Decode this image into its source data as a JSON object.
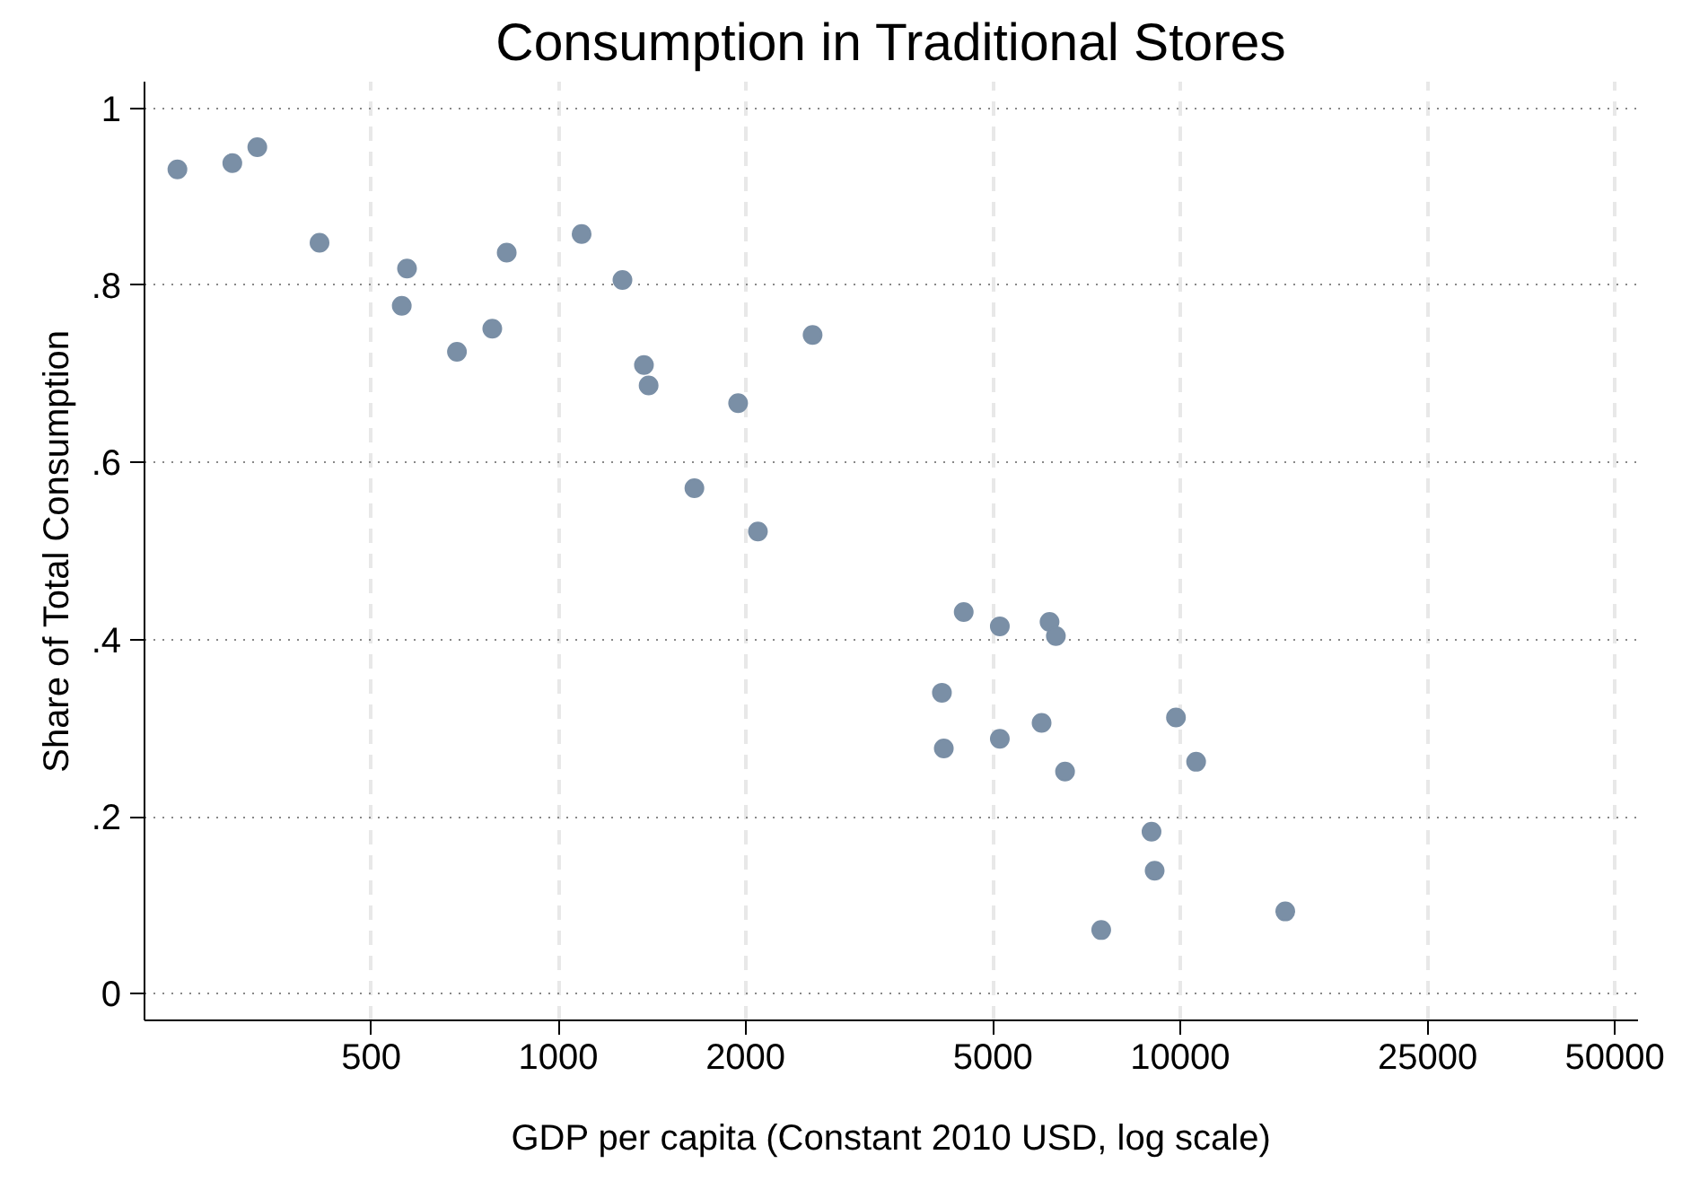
{
  "chart_data": {
    "type": "scatter",
    "title": "Consumption in Traditional Stores",
    "xlabel": "GDP per capita (Constant 2010 USD, log scale)",
    "ylabel": "Share of Total Consumption",
    "log": "x",
    "grid": true,
    "marker": "circle",
    "xlim": [
      216,
      54500
    ],
    "xticks": [
      500,
      1000,
      2000,
      5000,
      10000,
      25000,
      50000
    ],
    "ylim": [
      -0.03,
      1.03
    ],
    "yticks": [
      {
        "value": 0,
        "label": "0"
      },
      {
        "value": 0.2,
        "label": ".2"
      },
      {
        "value": 0.4,
        "label": ".4"
      },
      {
        "value": 0.6,
        "label": ".6"
      },
      {
        "value": 0.8,
        "label": ".8"
      },
      {
        "value": 1,
        "label": "1"
      }
    ],
    "series": [
      {
        "color": "#7a8fa6",
        "x": [
          244,
          299,
          328,
          413,
          571,
          560,
          687,
          783,
          826,
          1090,
          1268,
          1373,
          1397,
          1946,
          1655,
          2094,
          2564,
          4487,
          5129,
          6166,
          6312,
          4139,
          4168,
          5129,
          5987,
          6530,
          9847,
          10610,
          8995,
          9100,
          7466,
          14760
        ],
        "values": [
          0.931,
          0.938,
          0.956,
          0.848,
          0.819,
          0.777,
          0.725,
          0.751,
          0.837,
          0.858,
          0.806,
          0.71,
          0.687,
          0.667,
          0.571,
          0.522,
          0.744,
          0.431,
          0.415,
          0.42,
          0.404,
          0.34,
          0.277,
          0.288,
          0.306,
          0.251,
          0.312,
          0.262,
          0.183,
          0.139,
          0.072,
          0.093
        ]
      }
    ]
  }
}
